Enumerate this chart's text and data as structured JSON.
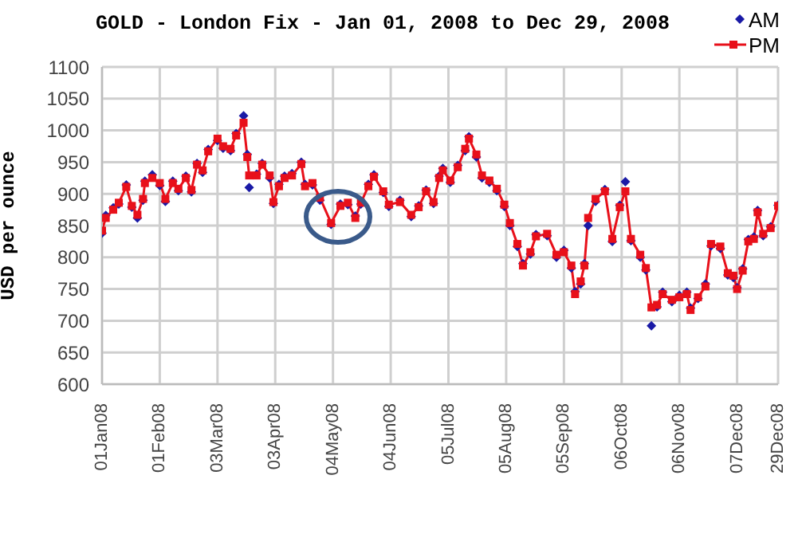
{
  "chart_data": {
    "type": "line",
    "title": "GOLD - London Fix - Jan 01, 2008 to Dec 29, 2008",
    "ylabel": "USD per ounce",
    "x": [
      "2008-01-01",
      "2008-01-03",
      "2008-01-07",
      "2008-01-10",
      "2008-01-14",
      "2008-01-17",
      "2008-01-20",
      "2008-01-23",
      "2008-01-24",
      "2008-01-28",
      "2008-02-01",
      "2008-02-04",
      "2008-02-08",
      "2008-02-11",
      "2008-02-15",
      "2008-02-18",
      "2008-02-21",
      "2008-02-24",
      "2008-02-27",
      "2008-03-03",
      "2008-03-06",
      "2008-03-10",
      "2008-03-13",
      "2008-03-17",
      "2008-03-19",
      "2008-03-20",
      "2008-03-24",
      "2008-03-27",
      "2008-03-31",
      "2008-04-02",
      "2008-04-05",
      "2008-04-08",
      "2008-04-12",
      "2008-04-17",
      "2008-04-19",
      "2008-04-23",
      "2008-04-27",
      "2008-05-03",
      "2008-05-08",
      "2008-05-12",
      "2008-05-16",
      "2008-05-19",
      "2008-05-23",
      "2008-05-26",
      "2008-05-31",
      "2008-06-03",
      "2008-06-09",
      "2008-06-15",
      "2008-06-19",
      "2008-06-23",
      "2008-06-27",
      "2008-06-30",
      "2008-07-02",
      "2008-07-06",
      "2008-07-10",
      "2008-07-14",
      "2008-07-16",
      "2008-07-20",
      "2008-07-23",
      "2008-07-27",
      "2008-07-31",
      "2008-08-04",
      "2008-08-07",
      "2008-08-11",
      "2008-08-14",
      "2008-08-18",
      "2008-08-21",
      "2008-08-27",
      "2008-09-01",
      "2008-09-05",
      "2008-09-09",
      "2008-09-11",
      "2008-09-14",
      "2008-09-16",
      "2008-09-18",
      "2008-09-22",
      "2008-09-27",
      "2008-10-01",
      "2008-10-05",
      "2008-10-08",
      "2008-10-11",
      "2008-10-16",
      "2008-10-19",
      "2008-10-22",
      "2008-10-25",
      "2008-10-28",
      "2008-11-02",
      "2008-11-06",
      "2008-11-10",
      "2008-11-12",
      "2008-11-16",
      "2008-11-20",
      "2008-11-23",
      "2008-11-28",
      "2008-12-02",
      "2008-12-05",
      "2008-12-07",
      "2008-12-10",
      "2008-12-13",
      "2008-12-16",
      "2008-12-18",
      "2008-12-21",
      "2008-12-25",
      "2008-12-29"
    ],
    "series": [
      {
        "name": "AM",
        "type": "scatter",
        "marker": "diamond",
        "color": "#1a1aa6",
        "values": [
          838,
          866,
          878,
          884,
          914,
          879,
          862,
          890,
          920,
          930,
          913,
          888,
          920,
          905,
          928,
          903,
          948,
          934,
          970,
          984,
          972,
          968,
          995,
          1023,
          962,
          910,
          931,
          948,
          925,
          885,
          915,
          928,
          932,
          950,
          915,
          914,
          890,
          852,
          884,
          883,
          865,
          884,
          915,
          930,
          902,
          880,
          890,
          864,
          881,
          906,
          885,
          928,
          940,
          918,
          945,
          968,
          990,
          958,
          925,
          918,
          905,
          880,
          850,
          817,
          790,
          805,
          836,
          834,
          800,
          811,
          783,
          746,
          758,
          790,
          850,
          888,
          907,
          825,
          882,
          919,
          826,
          800,
          780,
          692,
          722,
          745,
          730,
          740,
          745,
          720,
          735,
          758,
          818,
          814,
          772,
          768,
          752,
          782,
          828,
          832,
          874,
          834,
          848,
          882
        ]
      },
      {
        "name": "PM",
        "type": "line",
        "marker": "square",
        "line_style": "solid",
        "color": "#e8101a",
        "values": [
          842,
          862,
          875,
          886,
          911,
          881,
          867,
          892,
          917,
          925,
          917,
          892,
          917,
          908,
          925,
          906,
          946,
          937,
          967,
          987,
          975,
          971,
          992,
          1012,
          958,
          929,
          929,
          946,
          929,
          887,
          912,
          925,
          929,
          947,
          912,
          917,
          894,
          854,
          881,
          886,
          862,
          886,
          912,
          927,
          904,
          883,
          887,
          867,
          879,
          904,
          887,
          925,
          937,
          921,
          942,
          971,
          987,
          962,
          929,
          921,
          908,
          883,
          854,
          821,
          787,
          808,
          833,
          837,
          804,
          808,
          787,
          742,
          762,
          787,
          862,
          892,
          904,
          829,
          879,
          904,
          829,
          804,
          783,
          721,
          725,
          742,
          733,
          737,
          742,
          717,
          737,
          754,
          821,
          817,
          775,
          771,
          750,
          779,
          825,
          829,
          871,
          837,
          846,
          881
        ]
      }
    ],
    "xlim": [
      "2008-01-01",
      "2008-12-29"
    ],
    "xticks": [
      {
        "value": "2008-01-01",
        "label": "01Jan08"
      },
      {
        "value": "2008-02-01",
        "label": "01Feb08"
      },
      {
        "value": "2008-03-03",
        "label": "03Mar08"
      },
      {
        "value": "2008-04-03",
        "label": "03Apr08"
      },
      {
        "value": "2008-05-04",
        "label": "04May08"
      },
      {
        "value": "2008-06-04",
        "label": "04Jun08"
      },
      {
        "value": "2008-07-05",
        "label": "05Jul08"
      },
      {
        "value": "2008-08-05",
        "label": "05Aug08"
      },
      {
        "value": "2008-09-05",
        "label": "05Sep08"
      },
      {
        "value": "2008-10-06",
        "label": "06Oct08"
      },
      {
        "value": "2008-11-06",
        "label": "06Nov08"
      },
      {
        "value": "2008-12-07",
        "label": "07Dec08"
      },
      {
        "value": "2008-12-29",
        "label": "29Dec08"
      }
    ],
    "ylim": [
      600,
      1100
    ],
    "yticks": [
      600,
      650,
      700,
      750,
      800,
      850,
      900,
      950,
      1000,
      1050,
      1100
    ],
    "grid": true,
    "legend": "top right"
  }
}
